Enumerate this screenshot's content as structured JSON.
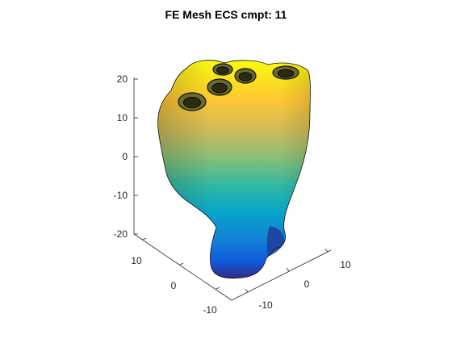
{
  "chart_data": {
    "type": "3d-surface-mesh",
    "title": "FE Mesh ECS cmpt: 11",
    "xlabel": "",
    "ylabel": "",
    "zlabel": "",
    "z_ticks": [
      20,
      10,
      0,
      -10,
      -20
    ],
    "x_ticks": [
      10,
      0,
      -10
    ],
    "y_ticks": [
      10,
      0,
      -10
    ],
    "colormap": [
      "#352a87",
      "#0f5cdd",
      "#1481d6",
      "#06a4ca",
      "#2eb7a4",
      "#87bf77",
      "#d1bb59",
      "#fec832",
      "#f9fb0e"
    ],
    "edge_color": "#000000",
    "grid": false
  }
}
